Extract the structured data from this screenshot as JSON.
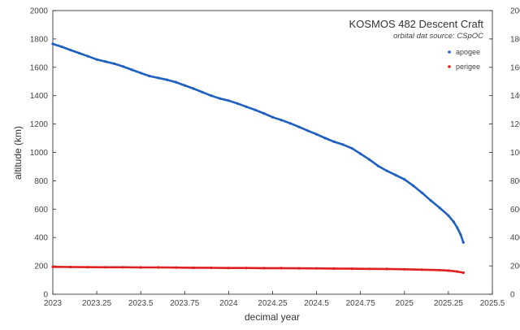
{
  "chart_data": {
    "type": "scatter",
    "title": "KOSMOS 482 Descent Craft",
    "subtitle": "orbital dat source:  CSpOC",
    "xlabel": "decimal year",
    "ylabel": "altitude (km)",
    "xlim": [
      2023,
      2025.5
    ],
    "ylim": [
      0,
      2000
    ],
    "xticks": [
      "2023",
      "2023.25",
      "2023.5",
      "2023.75",
      "2024",
      "2024.25",
      "2024.5",
      "2024.75",
      "2025",
      "2025.25",
      "2025.5"
    ],
    "yticks": [
      "0",
      "200",
      "400",
      "600",
      "800",
      "1000",
      "1200",
      "1400",
      "1600",
      "1800",
      "2000"
    ],
    "grid": false,
    "right_axis_labels": true,
    "legend_position": "top-right",
    "series": [
      {
        "name": "apogee",
        "color": "#1f5fbf",
        "x": [
          2023.0,
          2023.05,
          2023.1,
          2023.15,
          2023.2,
          2023.25,
          2023.3,
          2023.35,
          2023.4,
          2023.45,
          2023.5,
          2023.55,
          2023.6,
          2023.65,
          2023.7,
          2023.75,
          2023.8,
          2023.85,
          2023.9,
          2023.95,
          2024.0,
          2024.05,
          2024.1,
          2024.15,
          2024.2,
          2024.25,
          2024.3,
          2024.35,
          2024.4,
          2024.45,
          2024.5,
          2024.55,
          2024.6,
          2024.65,
          2024.7,
          2024.75,
          2024.8,
          2024.85,
          2024.9,
          2024.95,
          2025.0,
          2025.05,
          2025.1,
          2025.15,
          2025.2,
          2025.25,
          2025.28,
          2025.3,
          2025.32,
          2025.335
        ],
        "values": [
          1765,
          1745,
          1722,
          1700,
          1678,
          1655,
          1640,
          1625,
          1605,
          1582,
          1560,
          1538,
          1525,
          1512,
          1495,
          1472,
          1450,
          1425,
          1400,
          1380,
          1365,
          1345,
          1322,
          1300,
          1275,
          1248,
          1228,
          1205,
          1180,
          1153,
          1128,
          1100,
          1075,
          1055,
          1030,
          990,
          950,
          905,
          870,
          840,
          810,
          765,
          715,
          660,
          610,
          555,
          510,
          470,
          420,
          365
        ]
      },
      {
        "name": "perigee",
        "color": "#e02020",
        "x": [
          2023.0,
          2023.1,
          2023.2,
          2023.3,
          2023.4,
          2023.5,
          2023.6,
          2023.7,
          2023.8,
          2023.9,
          2024.0,
          2024.1,
          2024.2,
          2024.3,
          2024.4,
          2024.5,
          2024.6,
          2024.7,
          2024.8,
          2024.9,
          2025.0,
          2025.1,
          2025.2,
          2025.25,
          2025.3,
          2025.335
        ],
        "values": [
          193,
          192,
          191,
          190,
          190,
          189,
          189,
          188,
          187,
          186,
          185,
          185,
          184,
          184,
          183,
          182,
          181,
          180,
          179,
          178,
          176,
          173,
          170,
          167,
          160,
          152
        ]
      }
    ]
  }
}
